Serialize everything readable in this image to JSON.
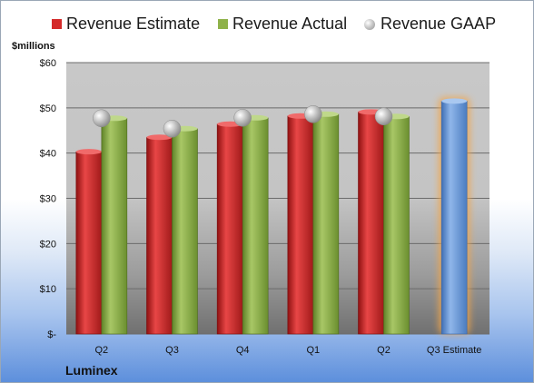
{
  "units_label": "$millions",
  "brand": "Luminex",
  "colors": {
    "estimate": "#d42a2a",
    "actual": "#8fb24a",
    "gaap": "#b7b7b7",
    "forecast": "#6f9edb",
    "forecast_glow": "#f2a54a"
  },
  "chart_data": {
    "type": "bar",
    "categories": [
      "Q2",
      "Q3",
      "Q4",
      "Q1",
      "Q2",
      "Q3 Estimate"
    ],
    "series": [
      {
        "name": "Revenue Estimate",
        "values": [
          40.3,
          43.5,
          46.4,
          48.2,
          49.1,
          51.5
        ]
      },
      {
        "name": "Revenue Actual",
        "values": [
          47.7,
          45.4,
          47.8,
          48.6,
          48.1,
          null
        ]
      },
      {
        "name": "Revenue GAAP",
        "values": [
          47.7,
          45.4,
          47.8,
          48.6,
          48.1,
          null
        ]
      }
    ],
    "yticks": [
      "$-",
      "$10",
      "$20",
      "$30",
      "$40",
      "$50",
      "$60"
    ],
    "ylabel": "$millions",
    "ylim": [
      0,
      60
    ],
    "grid": true,
    "legend": "top"
  }
}
